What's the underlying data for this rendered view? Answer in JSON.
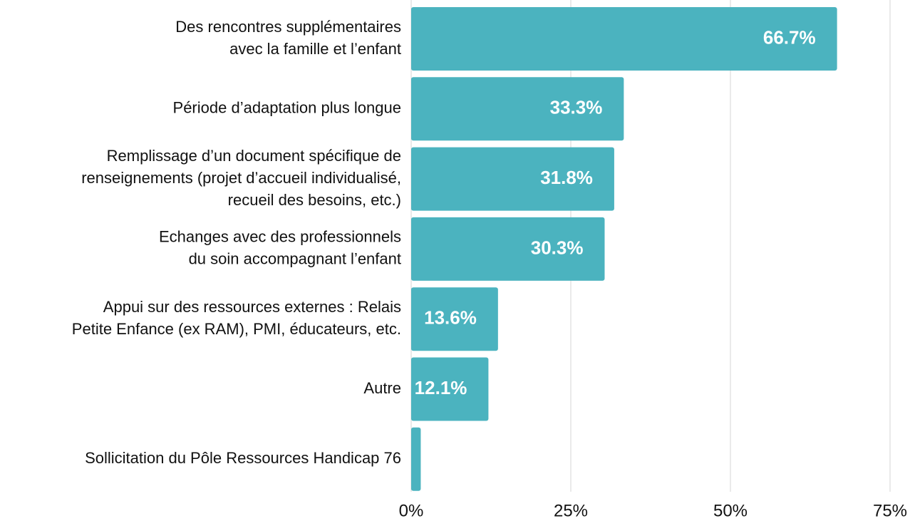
{
  "chart_data": {
    "type": "barh",
    "categories": [
      [
        "Des rencontres supplémentaires",
        "avec la famille et l’enfant"
      ],
      [
        "Période d’adaptation plus longue"
      ],
      [
        "Remplissage d’un document spécifique de",
        "renseignements (projet d’accueil individualisé,",
        "recueil des besoins, etc.)"
      ],
      [
        "Echanges avec des professionnels",
        "du soin accompagnant l’enfant"
      ],
      [
        "Appui sur des ressources externes : Relais",
        "Petite Enfance (ex RAM), PMI, éducateurs, etc."
      ],
      [
        "Autre"
      ],
      [
        "Sollicitation du Pôle Ressources Handicap 76"
      ]
    ],
    "values": [
      66.7,
      33.3,
      31.8,
      30.3,
      13.6,
      12.1,
      1.5
    ],
    "value_labels": [
      "66.7%",
      "33.3%",
      "31.8%",
      "30.3%",
      "13.6%",
      "12.1%",
      null
    ],
    "color": "#4bb3bf",
    "xlim": [
      0,
      75
    ],
    "xticks": [
      {
        "value": 0,
        "label": "0%"
      },
      {
        "value": 25,
        "label": "25%"
      },
      {
        "value": 50,
        "label": "50%"
      },
      {
        "value": 75,
        "label": "75%"
      }
    ],
    "grid": true
  }
}
